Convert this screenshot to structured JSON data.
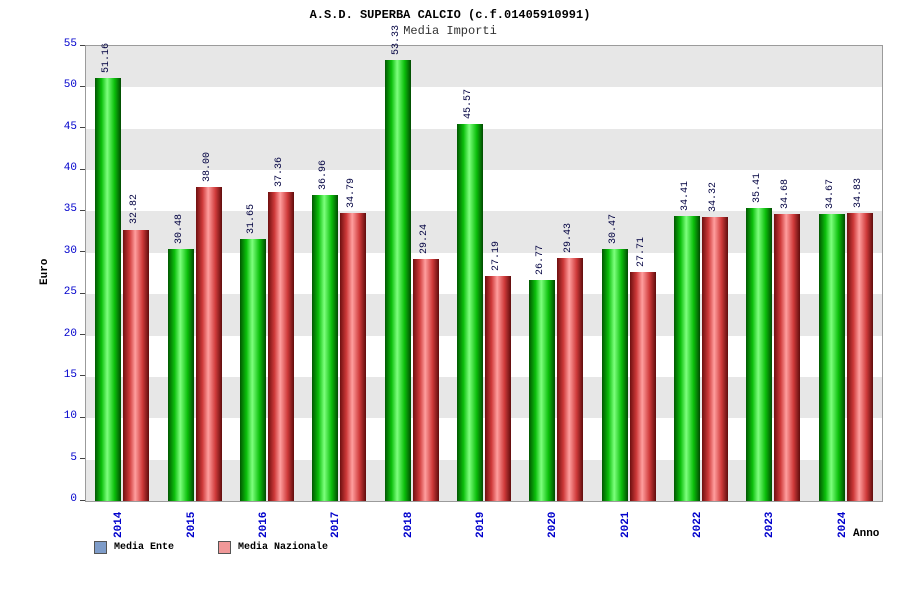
{
  "header": {
    "title": "A.S.D. SUPERBA CALCIO (c.f.01405910991)",
    "subtitle": "Media Importi"
  },
  "axes": {
    "y_label": "Euro",
    "x_label": "Anno",
    "y_ticks": [
      0,
      5,
      10,
      15,
      20,
      25,
      30,
      35,
      40,
      45,
      50,
      55
    ]
  },
  "legend": {
    "items": [
      {
        "label": "Media Ente",
        "color": "#7e9cc9"
      },
      {
        "label": "Media Nazionale",
        "color": "#f09898"
      }
    ]
  },
  "colors": {
    "axis_text": "#0000cc",
    "value_label": "#000040",
    "series_green": "#0bbf0b",
    "series_red": "#cf3a3a",
    "band_gray": "#e7e7e7"
  },
  "chart_data": {
    "type": "bar",
    "title": "A.S.D. SUPERBA CALCIO (c.f.01405910991)",
    "subtitle": "Media Importi",
    "categories": [
      "2014",
      "2015",
      "2016",
      "2017",
      "2018",
      "2019",
      "2020",
      "2021",
      "2022",
      "2023",
      "2024"
    ],
    "series": [
      {
        "name": "Media Ente",
        "color": "#0bbf0b",
        "values": [
          51.16,
          30.48,
          31.65,
          36.96,
          53.33,
          45.57,
          26.77,
          30.47,
          34.41,
          35.41,
          34.67
        ]
      },
      {
        "name": "Media Nazionale",
        "color": "#cf3a3a",
        "values": [
          32.82,
          38.0,
          37.36,
          34.79,
          29.24,
          27.19,
          29.43,
          27.71,
          34.32,
          34.68,
          34.83
        ]
      }
    ],
    "xlabel": "Anno",
    "ylabel": "Euro",
    "ylim": [
      0,
      55
    ],
    "ytick_step": 5,
    "value_labels": true,
    "value_label_decimals": 2,
    "legend_position": "bottom-left",
    "background_bands": true,
    "grid": false
  }
}
